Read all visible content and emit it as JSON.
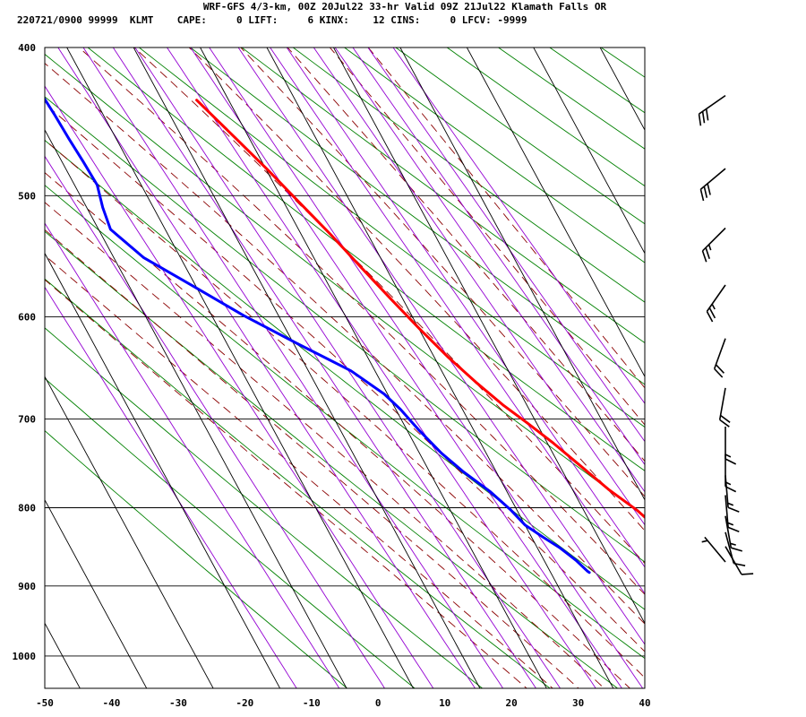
{
  "header": {
    "title": "WRF-GFS 4/3-km, 00Z 20Jul22 33-hr Valid 09Z 21Jul22 Klamath Falls OR",
    "subtitle": "220721/0900 99999  KLMT    CAPE:     0 LIFT:     6 KINX:    12 CINS:     0 LFCV: -9999"
  },
  "colors": {
    "temperature": "#ff0000",
    "dewpoint": "#0000ff",
    "isotherm": "#000000",
    "isobar": "#000000",
    "dry_adiabat": "#008000",
    "moist_adiabat": "#8b0000",
    "mixing_ratio": "#9400d3",
    "wind_barb": "#000000"
  },
  "chart_data": {
    "type": "line",
    "chart_kind": "skew-T log-P sounding",
    "station": "KLMT",
    "x_axis": {
      "label": "",
      "units_shown": "temperature (C)",
      "ticks": [
        -50,
        -40,
        -30,
        -20,
        -10,
        0,
        10,
        20,
        30,
        40
      ],
      "range": [
        -50,
        40
      ]
    },
    "y_axis": {
      "label": "",
      "units_shown": "pressure (hPa)",
      "scale": "log",
      "ticks": [
        400,
        500,
        600,
        700,
        800,
        900,
        1000
      ],
      "range": [
        400,
        1050
      ]
    },
    "grid": true,
    "series": [
      {
        "key": "temperature",
        "points": [
          [
            882,
            15.5
          ],
          [
            881,
            17.5
          ],
          [
            877,
            19.5
          ],
          [
            871,
            21.0
          ],
          [
            862,
            20.8
          ],
          [
            848,
            20.6
          ],
          [
            838,
            19.9
          ],
          [
            824,
            19.5
          ],
          [
            803,
            18.0
          ],
          [
            778,
            15.4
          ],
          [
            752,
            13.2
          ],
          [
            726,
            10.9
          ],
          [
            704,
            8.6
          ],
          [
            686,
            6.5
          ],
          [
            662,
            4.2
          ],
          [
            638,
            2.1
          ],
          [
            611,
            0.1
          ],
          [
            584,
            -1.8
          ],
          [
            557,
            -3.7
          ],
          [
            530,
            -5.6
          ],
          [
            505,
            -7.7
          ],
          [
            481,
            -9.8
          ],
          [
            458,
            -12.1
          ],
          [
            433,
            -14.8
          ]
        ]
      },
      {
        "key": "dewpoint",
        "points": [
          [
            882,
            5.8
          ],
          [
            880,
            5.6
          ],
          [
            866,
            4.8
          ],
          [
            850,
            3.4
          ],
          [
            836,
            1.7
          ],
          [
            821,
            0.0
          ],
          [
            803,
            -0.9
          ],
          [
            781,
            -2.5
          ],
          [
            758,
            -4.9
          ],
          [
            737,
            -6.7
          ],
          [
            712,
            -8.2
          ],
          [
            690,
            -9.3
          ],
          [
            674,
            -10.5
          ],
          [
            651,
            -13.6
          ],
          [
            624,
            -19.6
          ],
          [
            599,
            -25.2
          ],
          [
            573,
            -30.4
          ],
          [
            549,
            -35.5
          ],
          [
            526,
            -38.2
          ],
          [
            509,
            -37.6
          ],
          [
            492,
            -36.6
          ],
          [
            475,
            -36.8
          ],
          [
            459,
            -37.1
          ],
          [
            443,
            -37.3
          ],
          [
            428,
            -37.6
          ]
        ]
      }
    ],
    "wind_barbs": [
      {
        "p": 430,
        "dir": 235,
        "kt": 30
      },
      {
        "p": 480,
        "dir": 230,
        "kt": 30
      },
      {
        "p": 525,
        "dir": 225,
        "kt": 25
      },
      {
        "p": 572,
        "dir": 215,
        "kt": 25
      },
      {
        "p": 620,
        "dir": 200,
        "kt": 20
      },
      {
        "p": 668,
        "dir": 190,
        "kt": 20
      },
      {
        "p": 708,
        "dir": 180,
        "kt": 15
      },
      {
        "p": 738,
        "dir": 180,
        "kt": 15
      },
      {
        "p": 762,
        "dir": 175,
        "kt": 15
      },
      {
        "p": 785,
        "dir": 175,
        "kt": 15
      },
      {
        "p": 810,
        "dir": 170,
        "kt": 15
      },
      {
        "p": 830,
        "dir": 165,
        "kt": 10
      },
      {
        "p": 848,
        "dir": 150,
        "kt": 10
      },
      {
        "p": 868,
        "dir": 320,
        "kt": 5
      }
    ]
  }
}
